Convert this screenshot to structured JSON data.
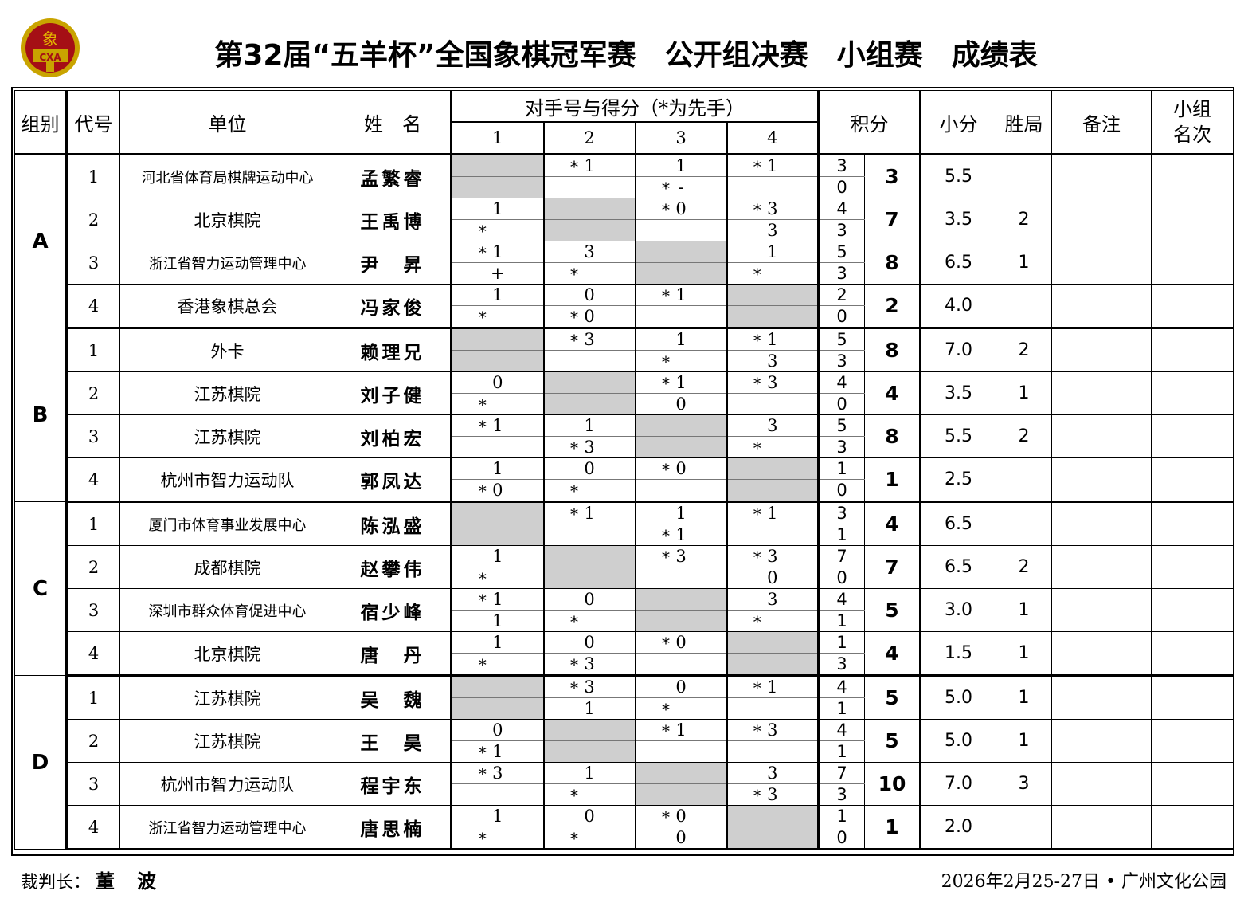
{
  "logo": {
    "glyph": "象",
    "text": "CXA",
    "colors": {
      "ring": "#c9a400",
      "field": "#a50f15"
    }
  },
  "title": {
    "event": "第32届“五羊杯”全国象棋冠军赛",
    "division": "公开组决赛",
    "stage": "小组赛",
    "doc": "成绩表"
  },
  "headers": {
    "group": "组别",
    "code": "代号",
    "unit": "单位",
    "name": "姓　名",
    "opponents": "对手号与得分（*为先手）",
    "opp_numbers": [
      "1",
      "2",
      "3",
      "4"
    ],
    "points": "积分",
    "small_points": "小分",
    "wins": "胜局",
    "note": "备注",
    "rank": "小组\n名次"
  },
  "colors": {
    "shaded_cell": "#cfcfcf"
  },
  "groups": [
    {
      "label": "A",
      "players": [
        {
          "code": "1",
          "unit": "河北省体育局棋牌运动中心",
          "name": "孟繁睿",
          "opp": [
            [
              "X",
              "X"
            ],
            [
              "*1",
              ""
            ],
            [
              "1",
              "*-"
            ],
            [
              "*1",
              ""
            ]
          ],
          "pts": [
            "3",
            "0"
          ],
          "total": "3",
          "small": "5.5",
          "wins": "",
          "note": "",
          "rank": ""
        },
        {
          "code": "2",
          "unit": "北京棋院",
          "name": "王禹博",
          "opp": [
            [
              "1",
              "*"
            ],
            [
              "X",
              "X"
            ],
            [
              "*0",
              ""
            ],
            [
              "*3",
              "3"
            ]
          ],
          "pts": [
            "4",
            "3"
          ],
          "total": "7",
          "small": "3.5",
          "wins": "2",
          "note": "",
          "rank": ""
        },
        {
          "code": "3",
          "unit": "浙江省智力运动管理中心",
          "name": "尹　昇",
          "opp": [
            [
              "*1",
              "+"
            ],
            [
              "3",
              "*"
            ],
            [
              "X",
              "X"
            ],
            [
              "1",
              "*"
            ]
          ],
          "pts": [
            "5",
            "3"
          ],
          "total": "8",
          "small": "6.5",
          "wins": "1",
          "note": "",
          "rank": ""
        },
        {
          "code": "4",
          "unit": "香港象棋总会",
          "name": "冯家俊",
          "opp": [
            [
              "1",
              "*"
            ],
            [
              "0",
              "*0"
            ],
            [
              "*1",
              ""
            ],
            [
              "X",
              "X"
            ]
          ],
          "pts": [
            "2",
            "0"
          ],
          "total": "2",
          "small": "4.0",
          "wins": "",
          "note": "",
          "rank": ""
        }
      ]
    },
    {
      "label": "B",
      "players": [
        {
          "code": "1",
          "unit": "外卡",
          "name": "赖理兄",
          "opp": [
            [
              "X",
              "X"
            ],
            [
              "*3",
              ""
            ],
            [
              "1",
              "*"
            ],
            [
              "*1",
              "3"
            ]
          ],
          "pts": [
            "5",
            "3"
          ],
          "total": "8",
          "small": "7.0",
          "wins": "2",
          "note": "",
          "rank": ""
        },
        {
          "code": "2",
          "unit": "江苏棋院",
          "name": "刘子健",
          "opp": [
            [
              "0",
              "*"
            ],
            [
              "X",
              "X"
            ],
            [
              "*1",
              "0"
            ],
            [
              "*3",
              ""
            ]
          ],
          "pts": [
            "4",
            "0"
          ],
          "total": "4",
          "small": "3.5",
          "wins": "1",
          "note": "",
          "rank": ""
        },
        {
          "code": "3",
          "unit": "江苏棋院",
          "name": "刘柏宏",
          "opp": [
            [
              "*1",
              ""
            ],
            [
              "1",
              "*3"
            ],
            [
              "X",
              "X"
            ],
            [
              "3",
              "*"
            ]
          ],
          "pts": [
            "5",
            "3"
          ],
          "total": "8",
          "small": "5.5",
          "wins": "2",
          "note": "",
          "rank": ""
        },
        {
          "code": "4",
          "unit": "杭州市智力运动队",
          "name": "郭凤达",
          "opp": [
            [
              "1",
              "*0"
            ],
            [
              "0",
              "*"
            ],
            [
              "*0",
              ""
            ],
            [
              "X",
              "X"
            ]
          ],
          "pts": [
            "1",
            "0"
          ],
          "total": "1",
          "small": "2.5",
          "wins": "",
          "note": "",
          "rank": ""
        }
      ]
    },
    {
      "label": "C",
      "players": [
        {
          "code": "1",
          "unit": "厦门市体育事业发展中心",
          "name": "陈泓盛",
          "opp": [
            [
              "X",
              "X"
            ],
            [
              "*1",
              ""
            ],
            [
              "1",
              "*1"
            ],
            [
              "*1",
              ""
            ]
          ],
          "pts": [
            "3",
            "1"
          ],
          "total": "4",
          "small": "6.5",
          "wins": "",
          "note": "",
          "rank": ""
        },
        {
          "code": "2",
          "unit": "成都棋院",
          "name": "赵攀伟",
          "opp": [
            [
              "1",
              "*"
            ],
            [
              "X",
              "X"
            ],
            [
              "*3",
              ""
            ],
            [
              "*3",
              "0"
            ]
          ],
          "pts": [
            "7",
            "0"
          ],
          "total": "7",
          "small": "6.5",
          "wins": "2",
          "note": "",
          "rank": ""
        },
        {
          "code": "3",
          "unit": "深圳市群众体育促进中心",
          "name": "宿少峰",
          "opp": [
            [
              "*1",
              "1"
            ],
            [
              "0",
              "*"
            ],
            [
              "X",
              "X"
            ],
            [
              "3",
              "*"
            ]
          ],
          "pts": [
            "4",
            "1"
          ],
          "total": "5",
          "small": "3.0",
          "wins": "1",
          "note": "",
          "rank": ""
        },
        {
          "code": "4",
          "unit": "北京棋院",
          "name": "唐　丹",
          "opp": [
            [
              "1",
              "*"
            ],
            [
              "0",
              "*3"
            ],
            [
              "*0",
              ""
            ],
            [
              "X",
              "X"
            ]
          ],
          "pts": [
            "1",
            "3"
          ],
          "total": "4",
          "small": "1.5",
          "wins": "1",
          "note": "",
          "rank": ""
        }
      ]
    },
    {
      "label": "D",
      "players": [
        {
          "code": "1",
          "unit": "江苏棋院",
          "name": "吴　魏",
          "opp": [
            [
              "X",
              "X"
            ],
            [
              "*3",
              "1"
            ],
            [
              "0",
              "*"
            ],
            [
              "*1",
              ""
            ]
          ],
          "pts": [
            "4",
            "1"
          ],
          "total": "5",
          "small": "5.0",
          "wins": "1",
          "note": "",
          "rank": ""
        },
        {
          "code": "2",
          "unit": "江苏棋院",
          "name": "王　昊",
          "opp": [
            [
              "0",
              "*1"
            ],
            [
              "X",
              "X"
            ],
            [
              "*1",
              ""
            ],
            [
              "*3",
              ""
            ]
          ],
          "pts": [
            "4",
            "1"
          ],
          "total": "5",
          "small": "5.0",
          "wins": "1",
          "note": "",
          "rank": ""
        },
        {
          "code": "3",
          "unit": "杭州市智力运动队",
          "name": "程宇东",
          "opp": [
            [
              "*3",
              ""
            ],
            [
              "1",
              "*"
            ],
            [
              "X",
              "X"
            ],
            [
              "3",
              "*3"
            ]
          ],
          "pts": [
            "7",
            "3"
          ],
          "total": "10",
          "small": "7.0",
          "wins": "3",
          "note": "",
          "rank": ""
        },
        {
          "code": "4",
          "unit": "浙江省智力运动管理中心",
          "name": "唐思楠",
          "opp": [
            [
              "1",
              "*"
            ],
            [
              "0",
              "*"
            ],
            [
              "*0",
              "0"
            ],
            [
              "X",
              "X"
            ]
          ],
          "pts": [
            "1",
            "0"
          ],
          "total": "1",
          "small": "2.0",
          "wins": "",
          "note": "",
          "rank": ""
        }
      ]
    }
  ],
  "footer": {
    "referee_label": "裁判长：",
    "referee": "董波",
    "date_place": "2026年2月25-27日 • 广州文化公园"
  }
}
